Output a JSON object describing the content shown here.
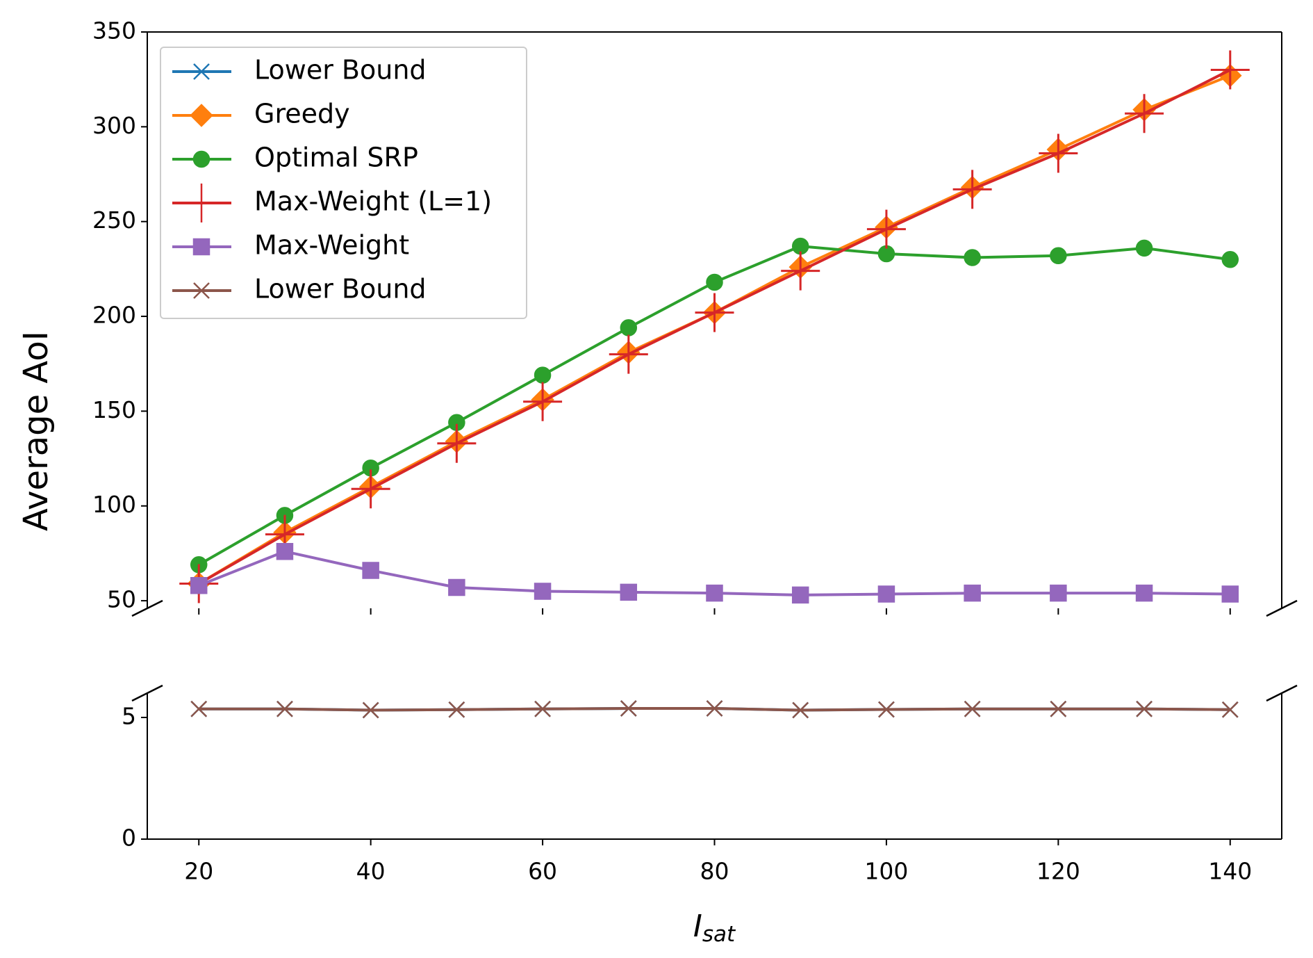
{
  "chart_data": {
    "type": "line",
    "ylabel": "Average AoI",
    "xlabel": "I",
    "xlabel_sub": "sat",
    "x": [
      20,
      30,
      40,
      50,
      60,
      70,
      80,
      90,
      100,
      110,
      120,
      130,
      140
    ],
    "xlim": [
      14,
      146
    ],
    "xticks": [
      20,
      40,
      60,
      80,
      100,
      120,
      140
    ],
    "ylim": [
      46,
      350
    ],
    "yticks": [
      50,
      100,
      150,
      200,
      250,
      300,
      350
    ],
    "ylim_lower": [
      0,
      6
    ],
    "yticks_lower": [
      0,
      5
    ],
    "legend": "upper left",
    "series": [
      {
        "name": "Lower Bound",
        "color": "#1f77b4",
        "marker": "x",
        "values": [
          5.35,
          5.35,
          5.3,
          5.32,
          5.35,
          5.37,
          5.37,
          5.3,
          5.33,
          5.35,
          5.35,
          5.35,
          5.32
        ]
      },
      {
        "name": "Greedy",
        "color": "#ff7f0e",
        "marker": "D",
        "values": [
          59,
          86,
          110,
          134,
          156,
          181,
          202,
          226,
          247,
          268,
          288,
          309,
          327
        ]
      },
      {
        "name": "Optimal SRP",
        "color": "#2ca02c",
        "marker": "o",
        "values": [
          69,
          95,
          120,
          144,
          169,
          194,
          218,
          237,
          233,
          231,
          232,
          236,
          230
        ]
      },
      {
        "name": "Max-Weight (L=1)",
        "color": "#d62728",
        "marker": "+",
        "values": [
          59,
          85,
          109,
          133,
          155,
          180,
          202,
          224,
          246,
          267,
          286,
          307,
          330
        ]
      },
      {
        "name": "Max-Weight",
        "color": "#9467bd",
        "marker": "s",
        "values": [
          58,
          76,
          66,
          57,
          55,
          54.5,
          54,
          53,
          53.5,
          54,
          54,
          54,
          53.5
        ]
      },
      {
        "name": "Lower Bound",
        "color": "#8c564b",
        "marker": "x",
        "values": [
          5.35,
          5.35,
          5.3,
          5.32,
          5.35,
          5.37,
          5.37,
          5.3,
          5.33,
          5.35,
          5.35,
          5.35,
          5.32
        ]
      }
    ]
  }
}
